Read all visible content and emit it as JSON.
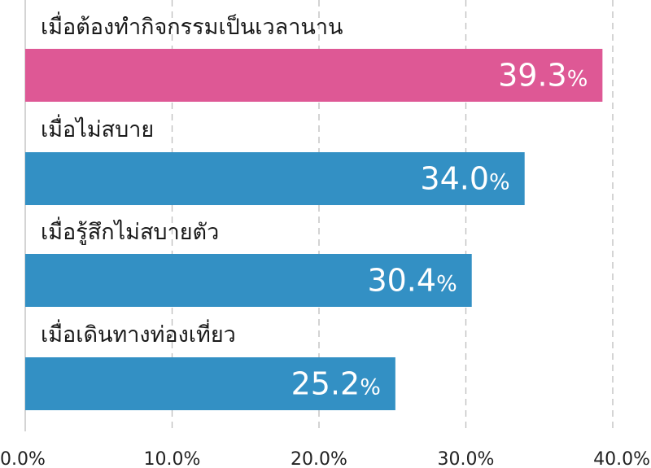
{
  "chart_data": {
    "type": "bar",
    "orientation": "horizontal",
    "categories": [
      "เมื่อต้องทำกิจกรรมเป็นเวลานาน",
      "เมื่อไม่สบาย",
      "เมื่อรู้สึกไม่สบายตัว",
      "เมื่อเดินทางท่องเที่ยว"
    ],
    "values": [
      39.3,
      34.0,
      30.4,
      25.2
    ],
    "value_labels": [
      "39.3",
      "34.0",
      "30.4",
      "25.2"
    ],
    "value_suffix": "%",
    "bar_colors": [
      "#de5895",
      "#3390c4",
      "#3390c4",
      "#3390c4"
    ],
    "xlim": [
      0,
      40
    ],
    "x_ticks": [
      0,
      10,
      20,
      30,
      40
    ],
    "x_tick_labels": [
      "0.0%",
      "10.0%",
      "20.0%",
      "30.0%",
      "40.0%"
    ],
    "grid": true,
    "grid_style": "dashed",
    "title": "",
    "xlabel": "",
    "ylabel": ""
  }
}
